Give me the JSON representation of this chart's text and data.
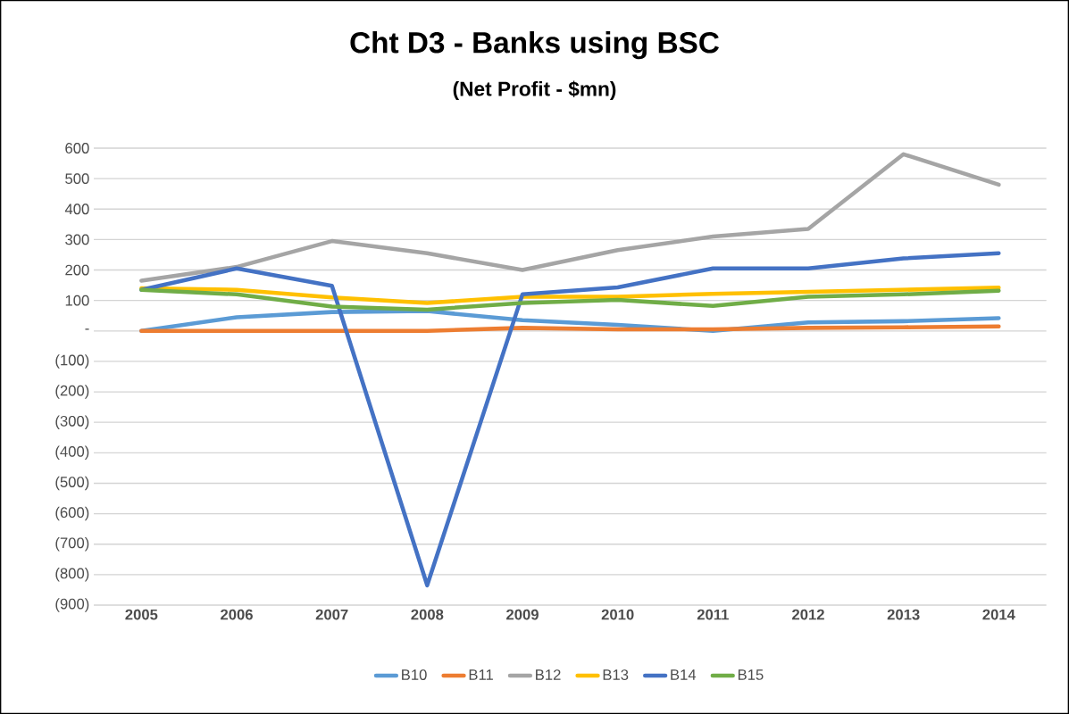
{
  "chart_data": {
    "type": "line",
    "title": "Cht D3 - Banks using BSC",
    "subtitle": "(Net Profit  - $mn)",
    "categories": [
      "2005",
      "2006",
      "2007",
      "2008",
      "2009",
      "2010",
      "2011",
      "2012",
      "2013",
      "2014"
    ],
    "series": [
      {
        "name": "B10",
        "color": "#5b9bd5",
        "values": [
          0,
          45,
          62,
          65,
          35,
          20,
          0,
          28,
          32,
          42
        ]
      },
      {
        "name": "B11",
        "color": "#ed7d31",
        "values": [
          0,
          0,
          0,
          0,
          10,
          5,
          5,
          10,
          12,
          15
        ]
      },
      {
        "name": "B12",
        "color": "#a5a5a5",
        "values": [
          165,
          210,
          295,
          255,
          200,
          265,
          310,
          335,
          580,
          480
        ]
      },
      {
        "name": "B13",
        "color": "#ffc000",
        "values": [
          140,
          135,
          110,
          92,
          112,
          112,
          122,
          128,
          135,
          142
        ]
      },
      {
        "name": "B14",
        "color": "#4472c4",
        "values": [
          135,
          205,
          148,
          -835,
          120,
          143,
          205,
          205,
          238,
          255
        ]
      },
      {
        "name": "B15",
        "color": "#70ad47",
        "values": [
          135,
          120,
          80,
          70,
          92,
          102,
          82,
          112,
          120,
          132
        ]
      }
    ],
    "ylim": [
      -900,
      600
    ],
    "yticks": [
      {
        "value": -900,
        "label": "(900)"
      },
      {
        "value": -800,
        "label": "(800)"
      },
      {
        "value": -700,
        "label": "(700)"
      },
      {
        "value": -600,
        "label": "(600)"
      },
      {
        "value": -500,
        "label": "(500)"
      },
      {
        "value": -400,
        "label": "(400)"
      },
      {
        "value": -300,
        "label": "(300)"
      },
      {
        "value": -200,
        "label": "(200)"
      },
      {
        "value": -100,
        "label": "(100)"
      },
      {
        "value": 0,
        "label": "-"
      },
      100,
      200,
      300,
      400,
      500,
      600
    ],
    "grid": "y",
    "legend": "bottom",
    "marker": "none",
    "line_style": "solid"
  }
}
